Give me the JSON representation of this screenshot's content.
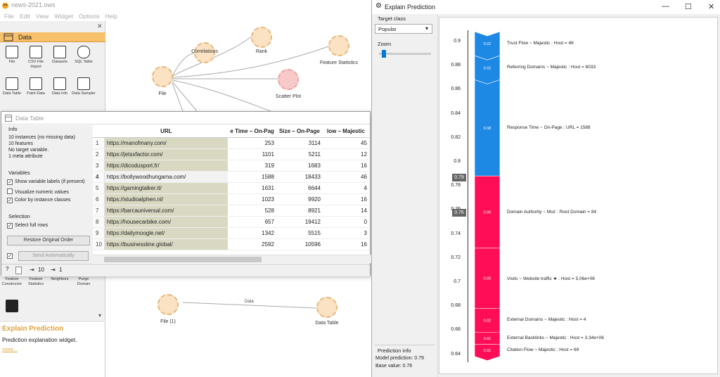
{
  "main_window": {
    "title": "news-2021.ows",
    "menu": [
      "File",
      "Edit",
      "View",
      "Widget",
      "Options",
      "Help"
    ]
  },
  "toolbox": {
    "category": "Data",
    "widgets": [
      {
        "label": "File",
        "icon": "file-icon"
      },
      {
        "label": "CSV File Import",
        "icon": "csv-icon"
      },
      {
        "label": "Datasets",
        "icon": "datasets-icon"
      },
      {
        "label": "SQL Table",
        "icon": "sql-icon"
      },
      {
        "label": "Data Table",
        "icon": "table-icon"
      },
      {
        "label": "Paint Data",
        "icon": "paint-icon"
      },
      {
        "label": "Data Info",
        "icon": "info-icon"
      },
      {
        "label": "Data Sampler",
        "icon": "sampler-icon"
      }
    ],
    "lower_widgets": [
      {
        "label": "Feature Constructor",
        "icon": "constructor-icon"
      },
      {
        "label": "Feature Statistics",
        "icon": "stats-icon"
      },
      {
        "label": "Neighbors",
        "icon": "neighbors-icon"
      },
      {
        "label": "Purge Domain",
        "icon": "purge-icon"
      }
    ]
  },
  "description": {
    "title": "Explain Prediction",
    "text": "Prediction explanation widget.",
    "more": "more..."
  },
  "canvas": {
    "nodes": {
      "file": "File",
      "correlations": "Correlations",
      "rank": "Rank",
      "feature_statistics": "Feature Statistics",
      "scatter_plot": "Scatter Plot",
      "file1": "File (1)",
      "data_table": "Data Table"
    },
    "link_label": "Data"
  },
  "data_table": {
    "title": "Data Table",
    "info_heading": "Info",
    "info_lines": [
      "10 instances (no missing data)",
      "10 features",
      "No target variable.",
      "1 meta attribute"
    ],
    "variables_heading": "Variables",
    "options": [
      {
        "label": "Show variable labels (if present)",
        "checked": true
      },
      {
        "label": "Visualize numeric values",
        "checked": false
      },
      {
        "label": "Color by instance classes",
        "checked": true
      }
    ],
    "selection_heading": "Selection",
    "select_full_rows": "Select full rows",
    "restore_button": "Restore Original Order",
    "send_button": "Send Automatically",
    "status_in": "10",
    "status_out": "1",
    "columns": [
      "URL",
      "e Time – On-Pag",
      "Size – On-Page",
      "low – Majestic"
    ],
    "rows": [
      [
        "1",
        "https://manofmany.com/",
        "253",
        "3114",
        "45"
      ],
      [
        "2",
        "https://jetsxfactor.com/",
        "1101",
        "5211",
        "12"
      ],
      [
        "3",
        "https://dicodusport.fr/",
        "319",
        "1683",
        "16"
      ],
      [
        "4",
        "https://bollywoodhungama.com/",
        "1588",
        "18433",
        "46"
      ],
      [
        "5",
        "https://gamingtalker.it/",
        "1631",
        "6644",
        "4"
      ],
      [
        "6",
        "https://studioalphen.nl/",
        "1023",
        "9920",
        "16"
      ],
      [
        "7",
        "https://barcauniversal.com/",
        "528",
        "8921",
        "14"
      ],
      [
        "8",
        "https://housecarbike.com/",
        "657",
        "19412",
        "0"
      ],
      [
        "9",
        "https://dailymoogle.net/",
        "1342",
        "5515",
        "3"
      ],
      [
        "10",
        "https://businessline.global/",
        "2592",
        "10596",
        "16"
      ]
    ]
  },
  "explain": {
    "title": "Explain Prediction",
    "target_label": "Target class",
    "target_value": "Popular",
    "zoom_label": "Zoom",
    "zoom_level": 0.05,
    "prediction_info_heading": "Prediction info",
    "model_prediction": "Model prediction: 0.79",
    "base_value": "Base value: 0.76",
    "axis_ticks": [
      "0.9",
      "0.88",
      "0.86",
      "0.84",
      "0.82",
      "0.8",
      "0.78",
      "0.76",
      "0.74",
      "0.72",
      "0.7",
      "0.68",
      "0.66",
      "0.64"
    ],
    "pred_marker": "0.79",
    "base_marker": "0.76",
    "positive_color": "#1e88e5",
    "negative_color": "#ff0d57",
    "features": [
      {
        "name": "Trust Flow  ~  Majestic  :  Host = 46",
        "value": "0.02",
        "type": "pos"
      },
      {
        "name": "Referring Domains  ~  Majestic  :  Host = 6033",
        "value": "0.02",
        "type": "pos"
      },
      {
        "name": "Response Time  ~  On-Page  :  URL = 1588",
        "value": "0.08",
        "type": "pos"
      },
      {
        "name": "Domain Authority  ~  Moz  :  Root Domain = 84",
        "value": "0.06",
        "type": "neg"
      },
      {
        "name": "Visits  ~  Website traffic ★  :  Host = 5,06e+06",
        "value": "0.05",
        "type": "neg"
      },
      {
        "name": "External Domains  ~  Majestic  :  Host = 4",
        "value": "0.02",
        "type": "neg"
      },
      {
        "name": "External Backlinks  ~  Majestic  :  Host = 3.34e+06",
        "value": "0.01",
        "type": "neg"
      },
      {
        "name": "Citation Flow  ~  Majestic  :  Host = 69",
        "value": "0.01",
        "type": "neg"
      }
    ]
  }
}
